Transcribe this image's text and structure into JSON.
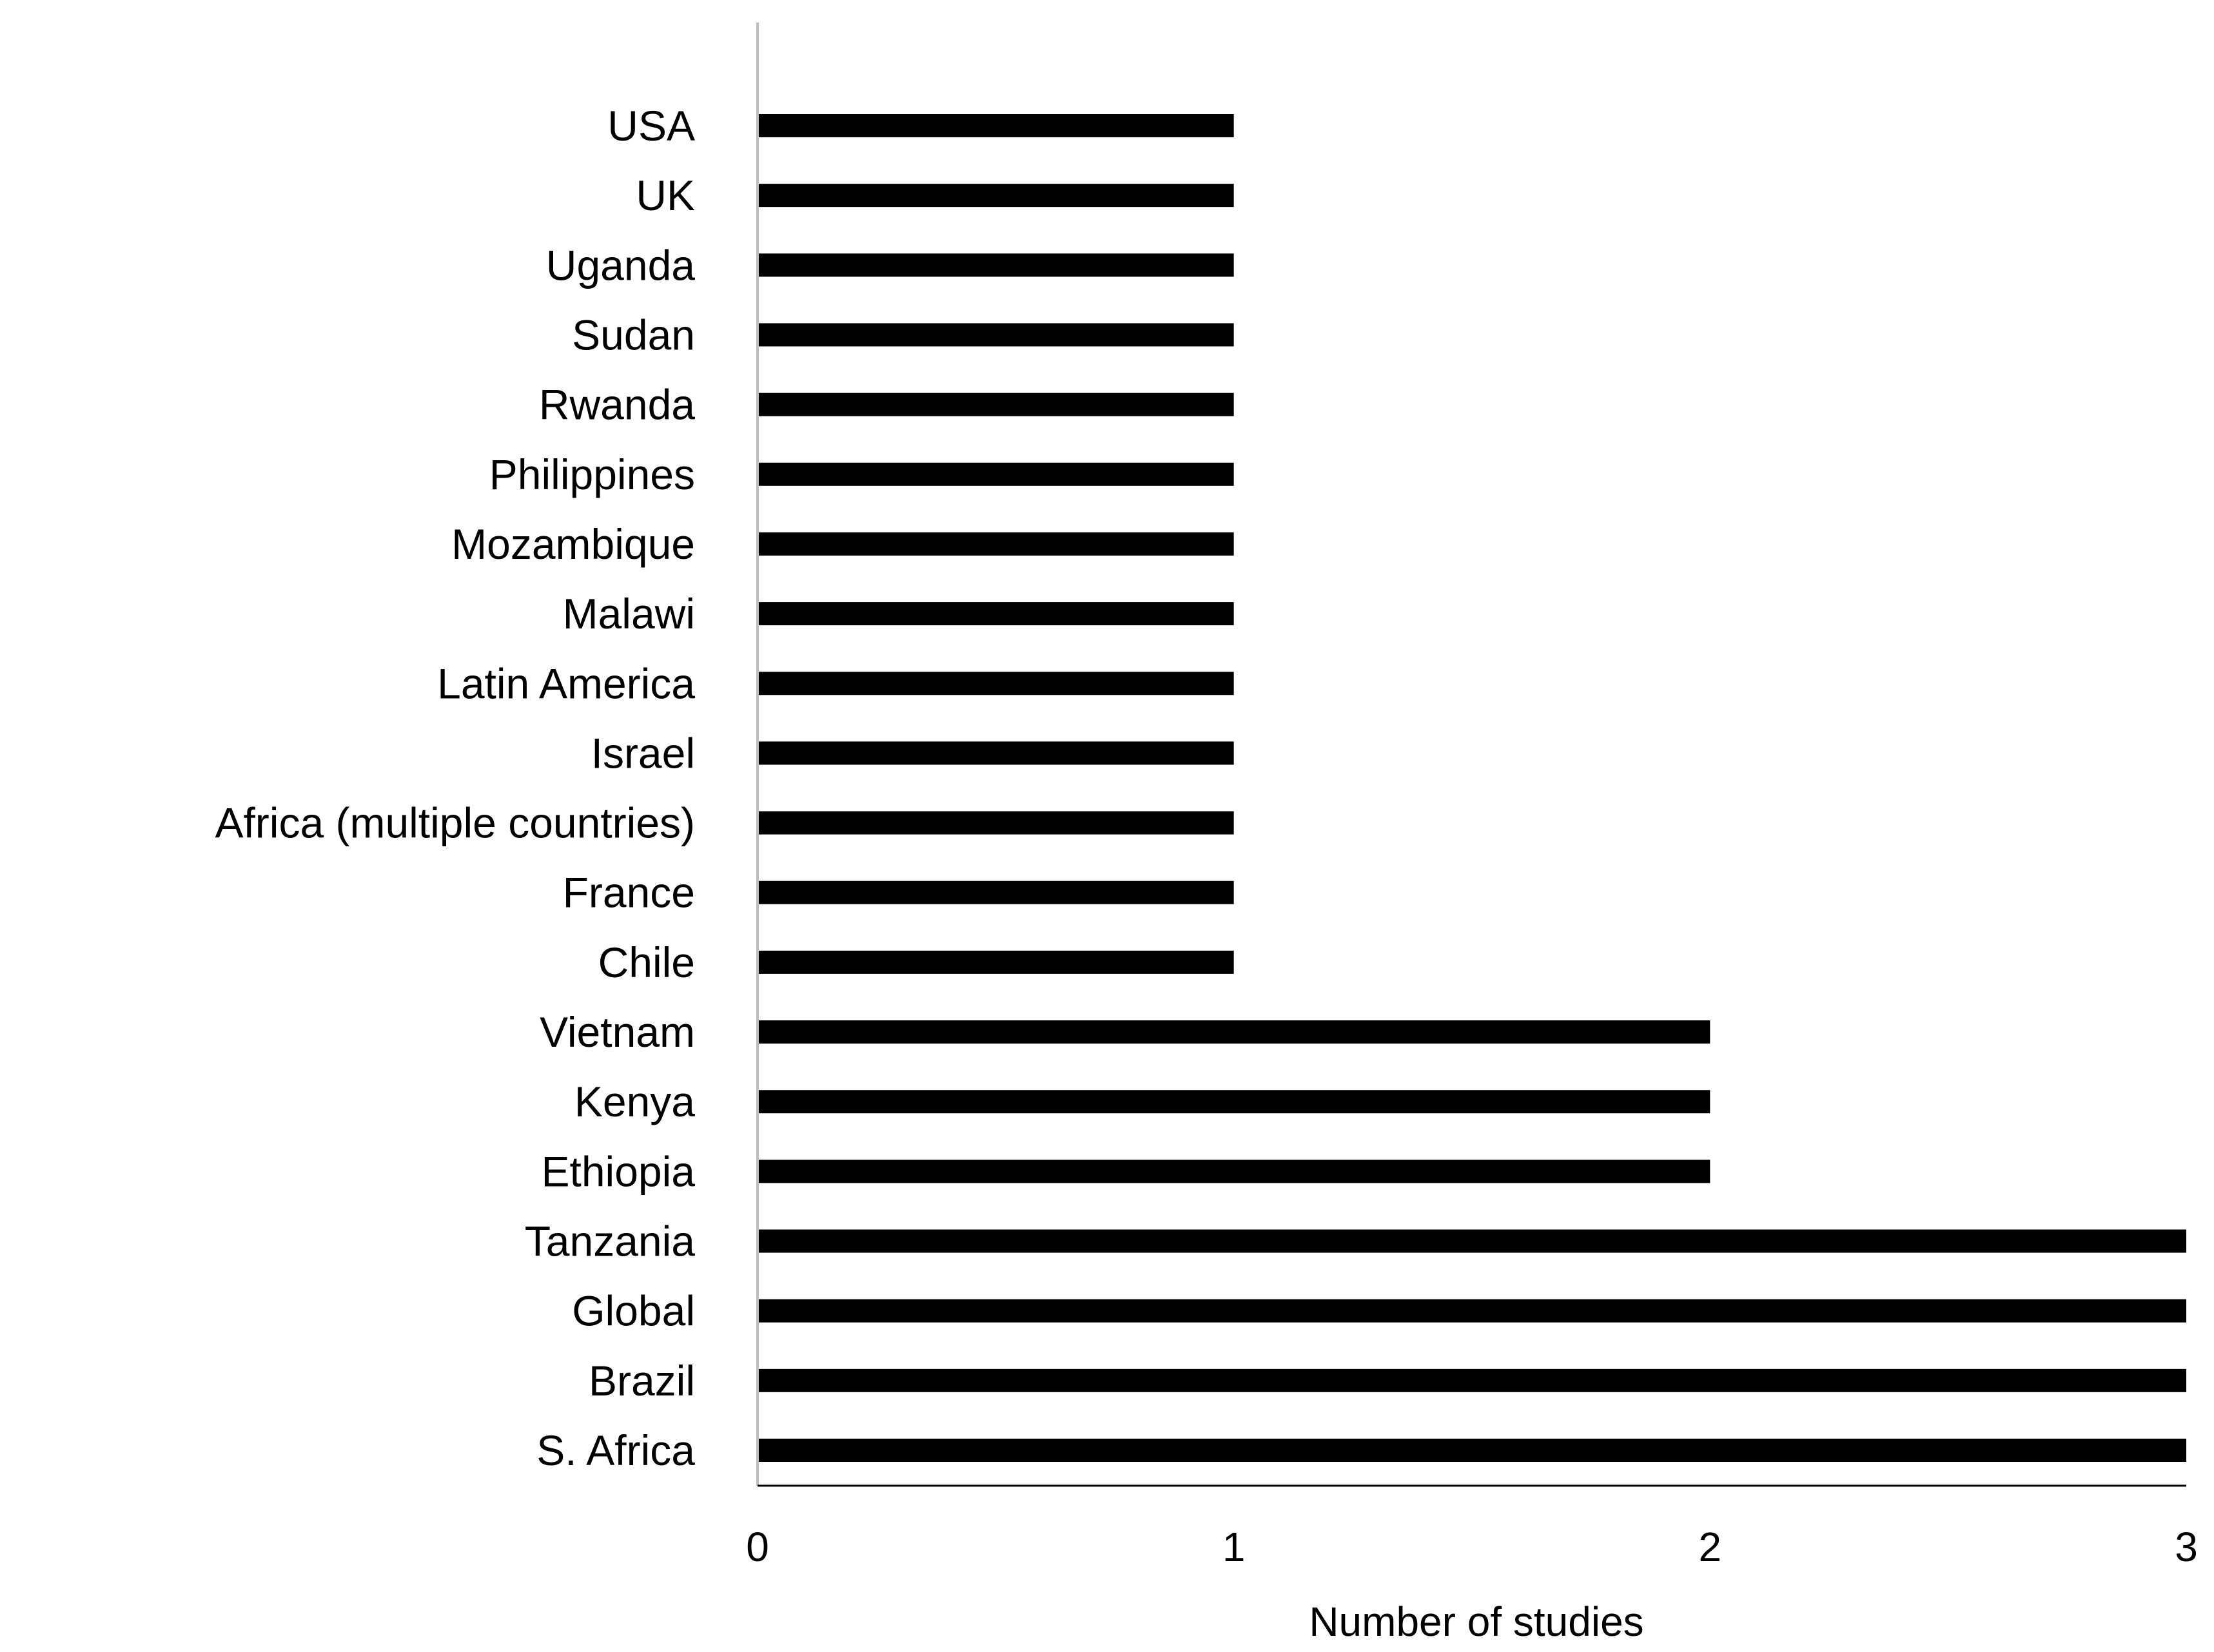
{
  "chart_data": {
    "type": "bar",
    "orientation": "horizontal",
    "title": "",
    "xlabel": "Number of studies",
    "ylabel": "",
    "categories": [
      "USA",
      "UK",
      "Uganda",
      "Sudan",
      "Rwanda",
      "Philippines",
      "Mozambique",
      "Malawi",
      "Latin America",
      "Israel",
      "Africa (multiple countries)",
      "France",
      "Chile",
      "Vietnam",
      "Kenya",
      "Ethiopia",
      "Tanzania",
      "Global",
      "Brazil",
      "S. Africa"
    ],
    "values": [
      1,
      1,
      1,
      1,
      1,
      1,
      1,
      1,
      1,
      1,
      1,
      1,
      1,
      2,
      2,
      2,
      3,
      3,
      3,
      3
    ],
    "xlim": [
      0,
      3
    ],
    "xticks": [
      "0",
      "1",
      "2",
      "3"
    ],
    "grid": false,
    "legend": "none",
    "colors": {
      "bar": "#000000",
      "axis": "#000000",
      "background": "#ffffff"
    }
  }
}
